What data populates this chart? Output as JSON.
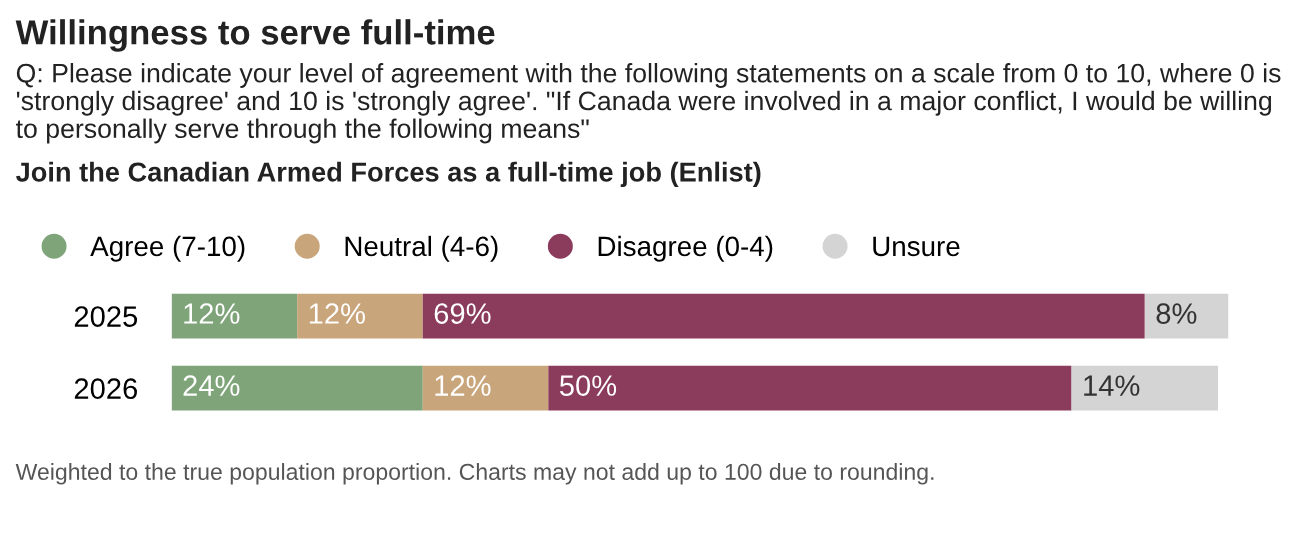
{
  "chart_data": {
    "type": "bar",
    "orientation": "horizontal",
    "stacked": true,
    "title": "Willingness to serve full-time",
    "subtitle": "Q: Please indicate your level of agreement with the following statements on a scale from 0 to 10, where 0 is 'strongly disagree' and 10 is 'strongly agree'. \"If Canada were involved in a major conflict, I would be willing to personally serve through the following means\"",
    "annotations": [
      "Join the Canadian Armed Forces as a full-time job (Enlist)",
      "Weighted to the true population proportion. Charts may not add up to 100 due to rounding."
    ],
    "categories": [
      "2025",
      "2026"
    ],
    "series": [
      {
        "name": "Agree (7-10)",
        "color": "#7fa47a",
        "values": [
          12,
          24
        ],
        "value_labels": [
          "12%",
          "24%"
        ]
      },
      {
        "name": "Neutral (4-6)",
        "color": "#c9a57b",
        "values": [
          12,
          12
        ],
        "value_labels": [
          "12%",
          "12%"
        ]
      },
      {
        "name": "Disagree (0-4)",
        "color": "#8b3b5c",
        "values": [
          69,
          50
        ],
        "value_labels": [
          "69%",
          "50%"
        ]
      },
      {
        "name": "Unsure",
        "color": "#d4d4d4",
        "values": [
          8,
          14
        ],
        "value_labels": [
          "8%",
          "14%"
        ]
      }
    ],
    "legend": "top",
    "marker": "circle",
    "grid": false
  }
}
